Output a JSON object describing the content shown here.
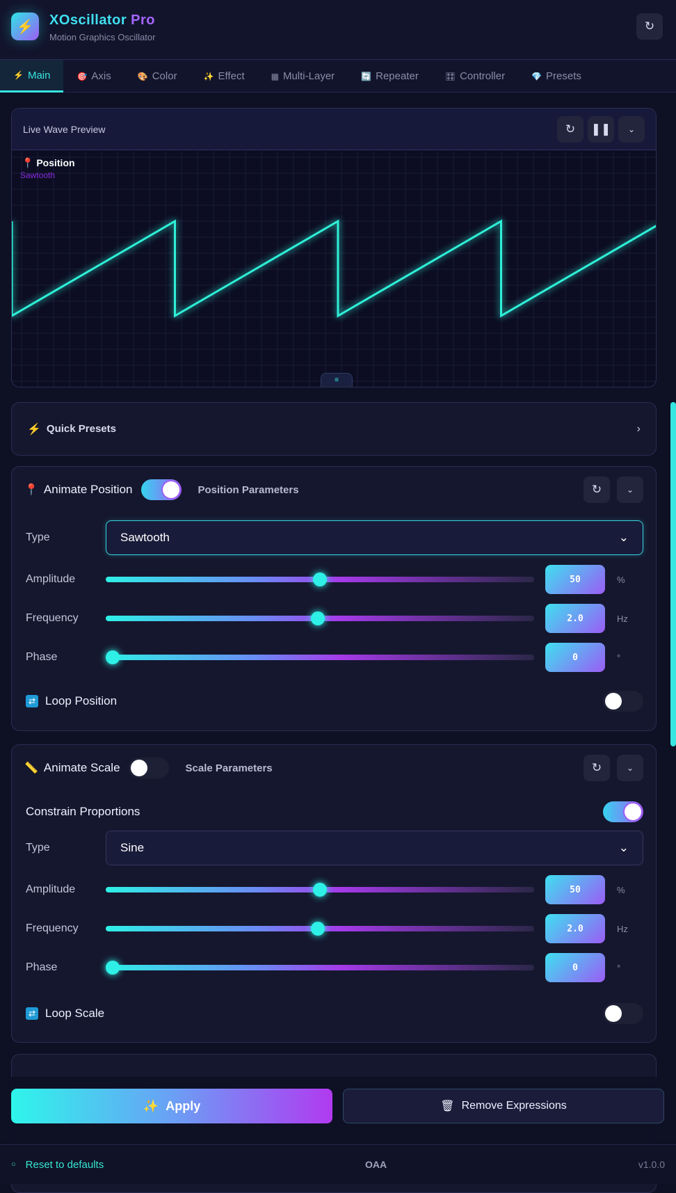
{
  "app": {
    "title": "XOscillator",
    "title_accent": "Pro",
    "subtitle": "Motion Graphics Oscillator"
  },
  "tabs": [
    {
      "label": "Main",
      "icon": "⚡",
      "active": true
    },
    {
      "label": "Axis",
      "icon": "🎯"
    },
    {
      "label": "Color",
      "icon": "🎨"
    },
    {
      "label": "Effect",
      "icon": "✨"
    },
    {
      "label": "Multi-Layer",
      "icon": "▦"
    },
    {
      "label": "Repeater",
      "icon": "🔄"
    },
    {
      "label": "Controller",
      "icon": "🎛"
    },
    {
      "label": "Presets",
      "icon": "💎"
    }
  ],
  "preview": {
    "title": "Live Wave Preview",
    "label": "Position",
    "wave": "Sawtooth",
    "wave_color": "#2ef0d8"
  },
  "quick_presets": {
    "label": "Quick Presets"
  },
  "position": {
    "title": "Animate Position",
    "enabled": true,
    "params": "Position Parameters",
    "type_label": "Type",
    "type": "Sawtooth",
    "amplitude": {
      "label": "Amplitude",
      "value": "50",
      "unit": "%",
      "fraction": 0.5
    },
    "frequency": {
      "label": "Frequency",
      "value": "2.0",
      "unit": "Hz",
      "fraction": 0.495
    },
    "phase": {
      "label": "Phase",
      "value": "0",
      "unit": "°",
      "fraction": 0
    },
    "loop": {
      "label": "Loop Position",
      "enabled": false
    }
  },
  "scale": {
    "title": "Animate Scale",
    "enabled": false,
    "params": "Scale Parameters",
    "constrain": {
      "label": "Constrain Proportions",
      "enabled": true
    },
    "type_label": "Type",
    "type": "Sine",
    "amplitude": {
      "label": "Amplitude",
      "value": "50",
      "unit": "%",
      "fraction": 0.5
    },
    "frequency": {
      "label": "Frequency",
      "value": "2.0",
      "unit": "Hz",
      "fraction": 0.495
    },
    "phase": {
      "label": "Phase",
      "value": "0",
      "unit": "°",
      "fraction": 0
    },
    "loop": {
      "label": "Loop Scale",
      "enabled": false
    }
  },
  "actions": {
    "apply": "Apply",
    "remove": "Remove Expressions"
  },
  "footer": {
    "reset": "Reset to defaults",
    "center": "OAA",
    "version": "v1.0.0"
  }
}
